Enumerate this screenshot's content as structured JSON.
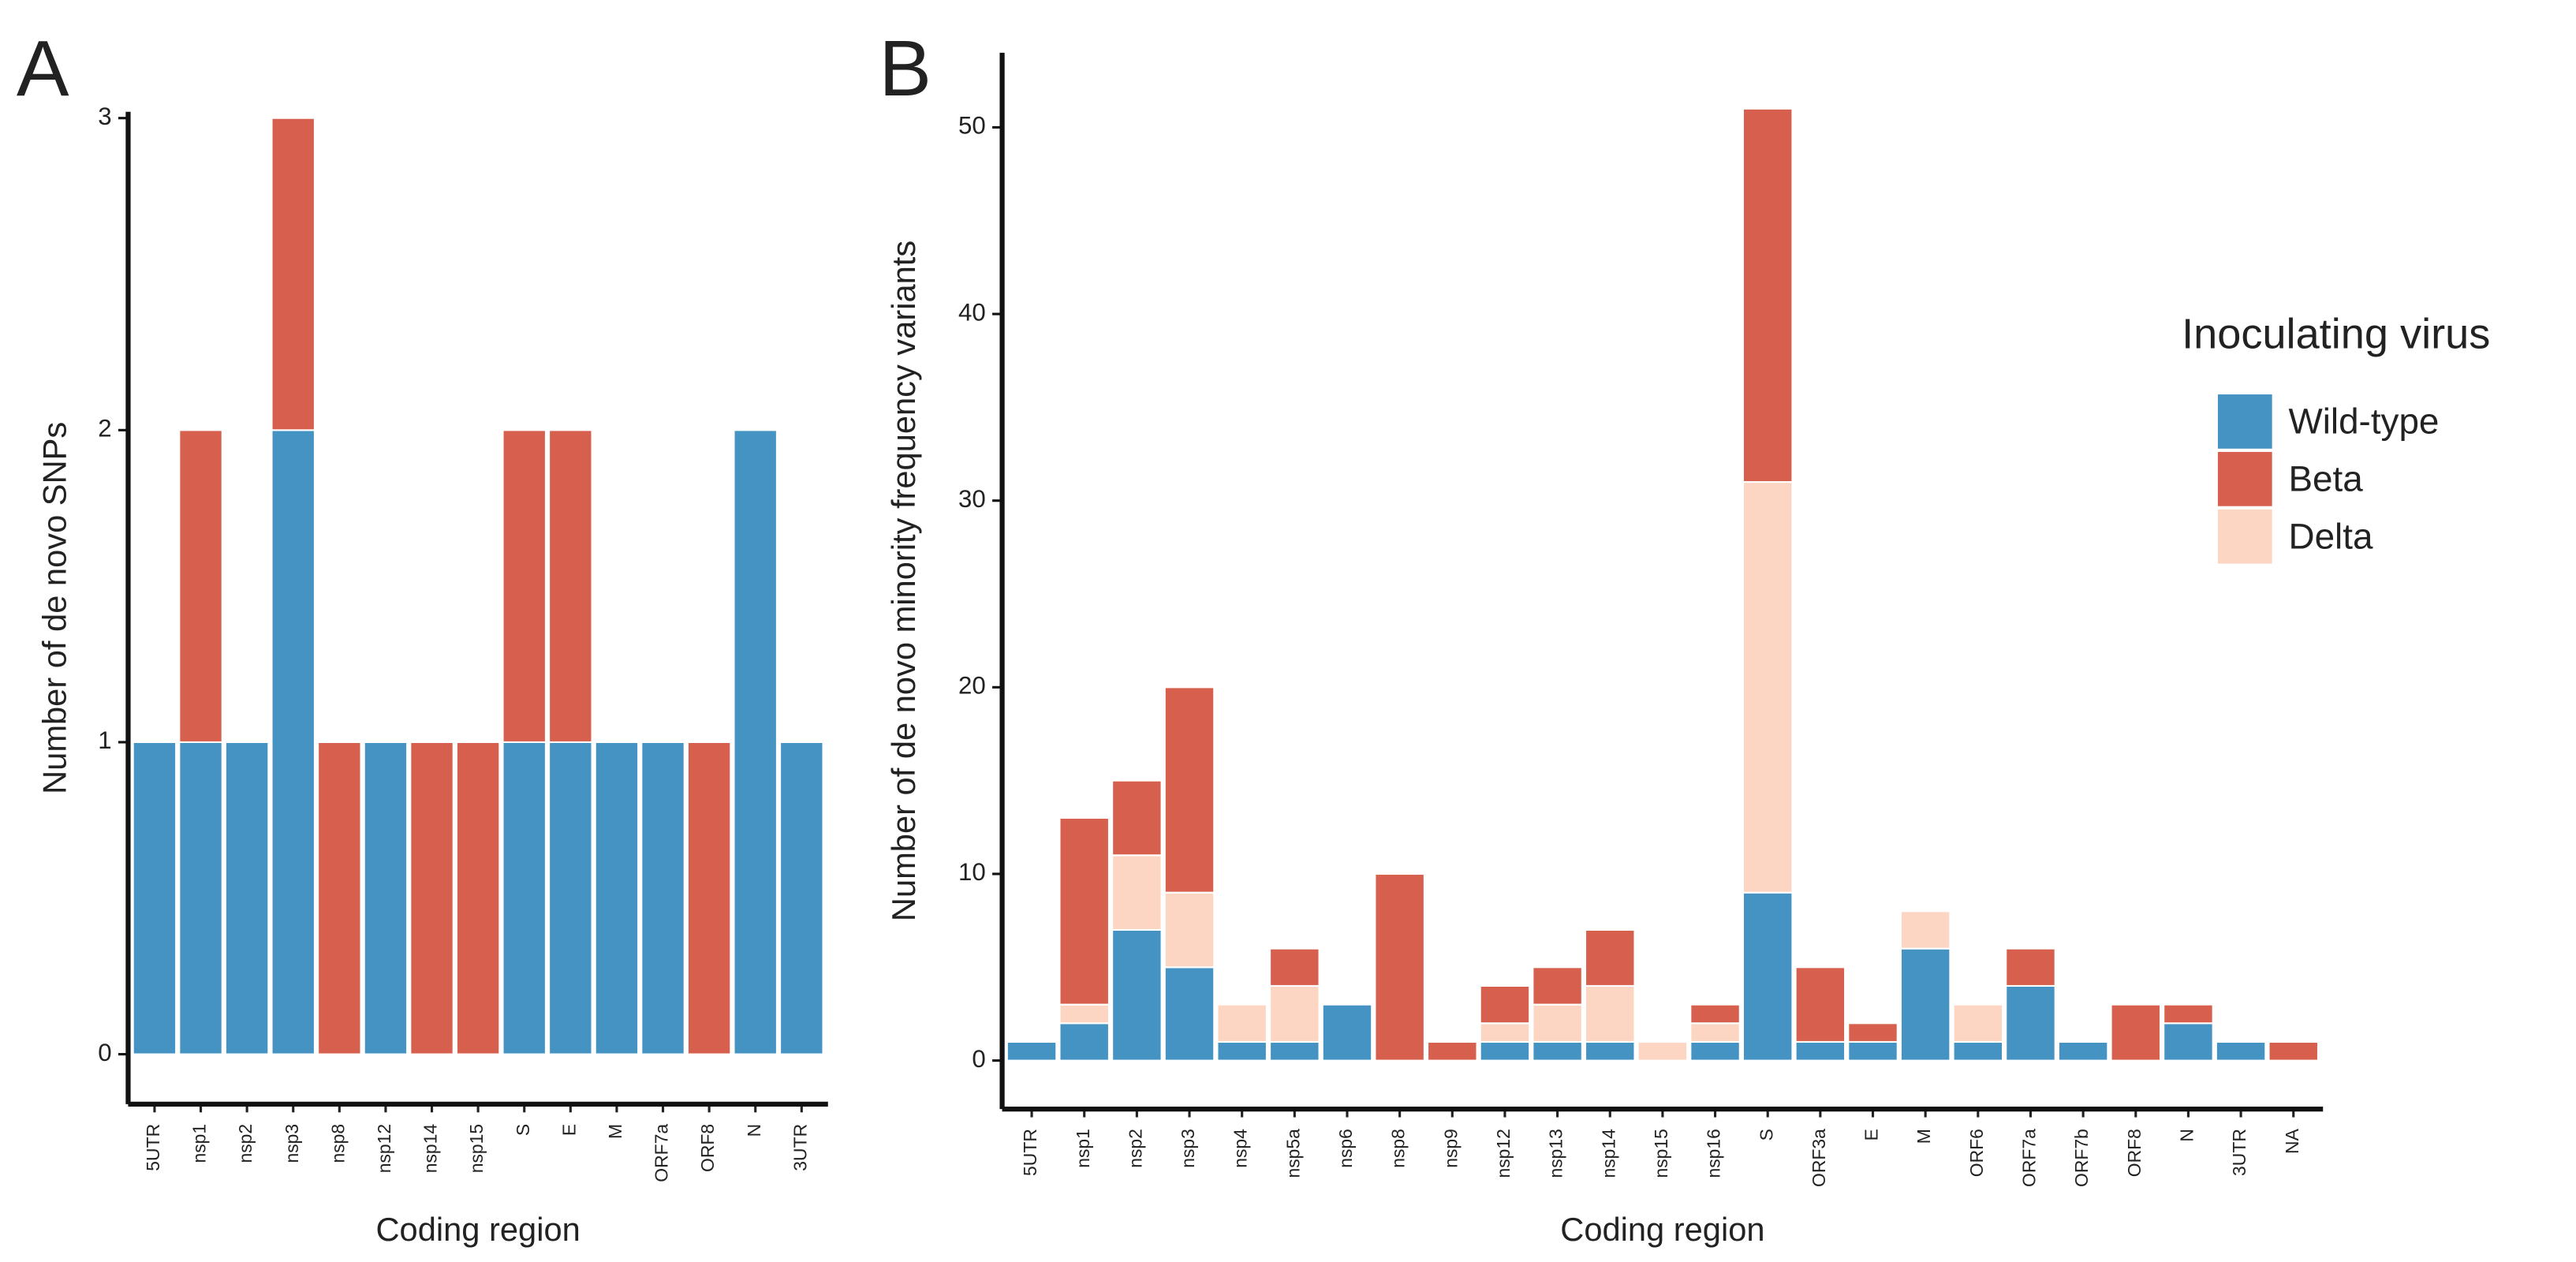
{
  "chart_data": [
    {
      "type": "bar",
      "stacked": true,
      "panel_label": "A",
      "x_label": "Coding region",
      "y_label": "Number of de novo SNPs",
      "categories": [
        "5UTR",
        "nsp1",
        "nsp2",
        "nsp3",
        "nsp8",
        "nsp12",
        "nsp14",
        "nsp15",
        "S",
        "E",
        "M",
        "ORF7a",
        "ORF8",
        "N",
        "3UTR"
      ],
      "series": [
        {
          "color": "#4593c3",
          "values": [
            1,
            1,
            1,
            2,
            0,
            1,
            0,
            0,
            1,
            1,
            1,
            1,
            0,
            2,
            1
          ]
        },
        {
          "color": "#d6604d",
          "values": [
            0,
            1,
            0,
            1,
            1,
            0,
            1,
            1,
            1,
            1,
            0,
            0,
            1,
            0,
            0
          ]
        }
      ],
      "ylim": [
        -0.16,
        3.02
      ],
      "yticks": [
        0,
        1,
        2,
        3
      ],
      "grid": false
    },
    {
      "type": "bar",
      "stacked": true,
      "panel_label": "B",
      "x_label": "Coding region",
      "y_label": "Number of de novo minority frequency variants",
      "legend_title": "Inoculating virus",
      "legend": "right",
      "categories": [
        "5UTR",
        "nsp1",
        "nsp2",
        "nsp3",
        "nsp4",
        "nsp5a",
        "nsp6",
        "nsp8",
        "nsp9",
        "nsp12",
        "nsp13",
        "nsp14",
        "nsp15",
        "nsp16",
        "S",
        "ORF3a",
        "E",
        "M",
        "ORF6",
        "ORF7a",
        "ORF7b",
        "ORF8",
        "N",
        "3UTR",
        "NA"
      ],
      "series": [
        {
          "name": "Wild-type",
          "color": "#4593c3",
          "values": [
            1,
            2,
            7,
            5,
            1,
            1,
            3,
            0,
            0,
            1,
            1,
            1,
            0,
            1,
            9,
            1,
            1,
            6,
            1,
            4,
            1,
            0,
            2,
            1,
            0
          ]
        },
        {
          "name": "Beta",
          "color": "#d6604d",
          "values": [
            0,
            10,
            4,
            11,
            0,
            2,
            0,
            10,
            1,
            2,
            2,
            3,
            0,
            1,
            20,
            4,
            1,
            0,
            0,
            2,
            0,
            3,
            1,
            0,
            1
          ]
        },
        {
          "name": "Delta",
          "color": "#fcd6c2",
          "values": [
            0,
            1,
            4,
            4,
            2,
            3,
            0,
            0,
            0,
            1,
            2,
            3,
            1,
            1,
            22,
            0,
            0,
            2,
            2,
            0,
            0,
            0,
            0,
            0,
            0
          ]
        }
      ],
      "series_order": [
        0,
        2,
        1
      ],
      "ylim": [
        -2.6,
        54
      ],
      "yticks": [
        0,
        10,
        20,
        30,
        40,
        50
      ],
      "grid": false
    }
  ]
}
